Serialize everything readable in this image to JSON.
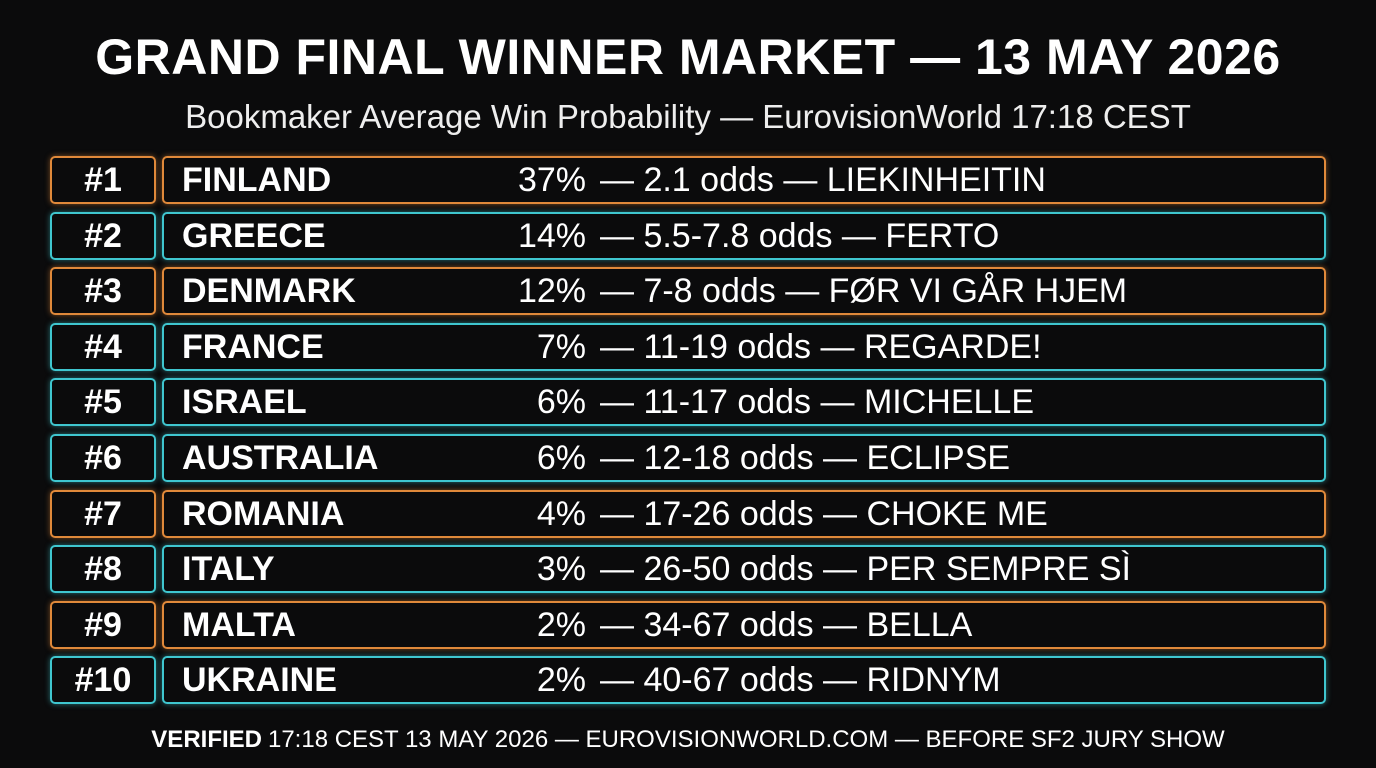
{
  "header": {
    "title": "GRAND FINAL WINNER MARKET — 13 MAY 2026",
    "subtitle": "Bookmaker Average Win Probability — EurovisionWorld 17:18 CEST"
  },
  "rows": [
    {
      "rank": "#1",
      "country": "FINLAND",
      "pct": "37%",
      "detail": "— 2.1 odds — LIEKINHEITIN",
      "color": "#e0893a"
    },
    {
      "rank": "#2",
      "country": "GREECE",
      "pct": "14%",
      "detail": "— 5.5-7.8 odds — FERTO",
      "color": "#3fc6cf"
    },
    {
      "rank": "#3",
      "country": "DENMARK",
      "pct": "12%",
      "detail": "— 7-8 odds — FØR VI GÅR HJEM",
      "color": "#e0893a"
    },
    {
      "rank": "#4",
      "country": "FRANCE",
      "pct": "7%",
      "detail": "— 11-19 odds — REGARDE!",
      "color": "#3fc6cf"
    },
    {
      "rank": "#5",
      "country": "ISRAEL",
      "pct": "6%",
      "detail": "— 11-17 odds — MICHELLE",
      "color": "#3fc6cf"
    },
    {
      "rank": "#6",
      "country": "AUSTRALIA",
      "pct": "6%",
      "detail": "— 12-18 odds — ECLIPSE",
      "color": "#3fc6cf"
    },
    {
      "rank": "#7",
      "country": "ROMANIA",
      "pct": "4%",
      "detail": "— 17-26 odds — CHOKE ME",
      "color": "#e0893a"
    },
    {
      "rank": "#8",
      "country": "ITALY",
      "pct": "3%",
      "detail": "— 26-50 odds — PER SEMPRE SÌ",
      "color": "#3fc6cf"
    },
    {
      "rank": "#9",
      "country": "MALTA",
      "pct": "2%",
      "detail": "— 34-67 odds — BELLA",
      "color": "#e0893a"
    },
    {
      "rank": "#10",
      "country": "UKRAINE",
      "pct": "2%",
      "detail": "— 40-67 odds — RIDNYM",
      "color": "#3fc6cf"
    }
  ],
  "footer": {
    "label": "VERIFIED",
    "text": "17:18 CEST 13 MAY 2026 — EUROVISIONWORLD.COM — BEFORE SF2 JURY SHOW"
  }
}
